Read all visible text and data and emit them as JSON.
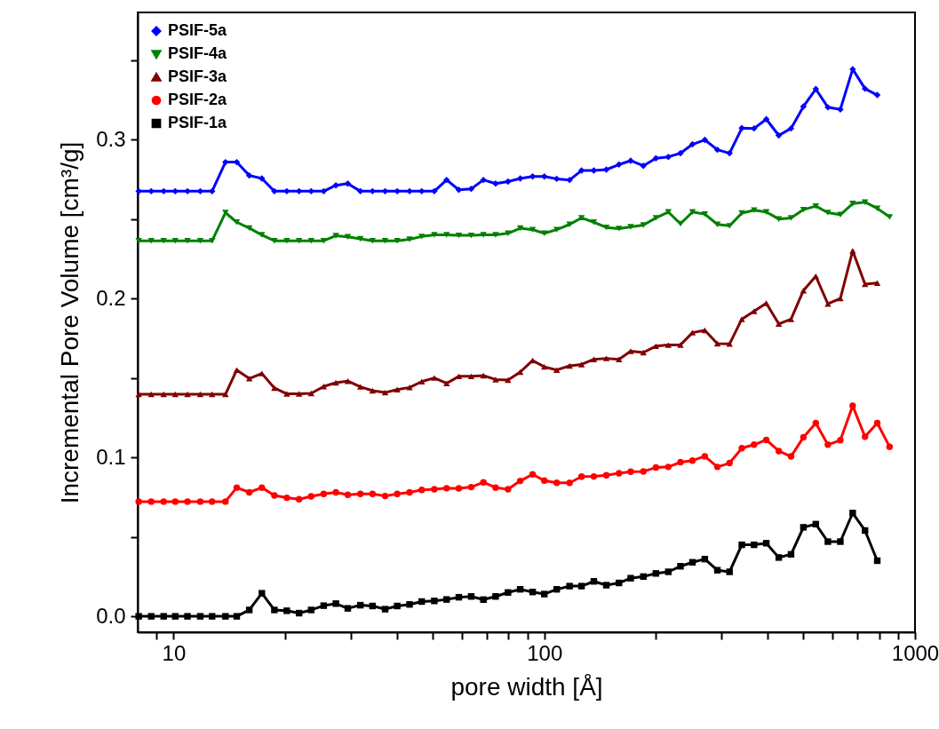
{
  "chart_data": {
    "type": "line",
    "xlabel": "pore width [Å]",
    "ylabel": "Incremental Pore Volume [cm³/g]",
    "log": "x",
    "grid": false,
    "legend": "top left",
    "line_style": "solid",
    "xlim": [
      8,
      1000
    ],
    "xticks": [
      {
        "value": 9,
        "label": null
      },
      {
        "value": 10,
        "label": "10"
      },
      {
        "value": 20,
        "label": null
      },
      {
        "value": 30,
        "label": null
      },
      {
        "value": 40,
        "label": null
      },
      {
        "value": 50,
        "label": null
      },
      {
        "value": 60,
        "label": null
      },
      {
        "value": 70,
        "label": null
      },
      {
        "value": 80,
        "label": null
      },
      {
        "value": 90,
        "label": null
      },
      {
        "value": 100,
        "label": "100"
      },
      {
        "value": 200,
        "label": null
      },
      {
        "value": 300,
        "label": null
      },
      {
        "value": 400,
        "label": null
      },
      {
        "value": 500,
        "label": null
      },
      {
        "value": 600,
        "label": null
      },
      {
        "value": 700,
        "label": null
      },
      {
        "value": 800,
        "label": null
      },
      {
        "value": 900,
        "label": null
      },
      {
        "value": 1000,
        "label": "1000"
      }
    ],
    "ylim": [
      -0.01,
      0.38
    ],
    "yticks": [
      {
        "value": 0,
        "label": "0.0"
      },
      {
        "value": 0.05,
        "label": null
      },
      {
        "value": 0.1,
        "label": "0.1"
      },
      {
        "value": 0.15,
        "label": null
      },
      {
        "value": 0.2,
        "label": "0.2"
      },
      {
        "value": 0.25,
        "label": null
      },
      {
        "value": 0.3,
        "label": "0.3"
      },
      {
        "value": 0.35,
        "label": null
      }
    ],
    "x": [
      8.05,
      8.7,
      9.4,
      10.1,
      10.9,
      11.8,
      12.7,
      13.8,
      14.8,
      16,
      17.3,
      18.7,
      20.2,
      21.8,
      23.5,
      25.4,
      27.4,
      29.5,
      31.9,
      34.4,
      37.2,
      40.1,
      43.3,
      46.7,
      50.5,
      54.5,
      58.8,
      63.5,
      68.5,
      73.9,
      79.8,
      86.1,
      93,
      100,
      108,
      117,
      126,
      136,
      147,
      159,
      171,
      185,
      200,
      216,
      233,
      251,
      271,
      293,
      316,
      341,
      368,
      397,
      429,
      463,
      500,
      540,
      582,
      629,
      679,
      733,
      791,
      854
    ],
    "series": [
      {
        "name": "PSIF-5a",
        "color": "#0000ff",
        "marker": "diamond",
        "values": [
          0.2675,
          0.2675,
          0.2675,
          0.2675,
          0.2675,
          0.2675,
          0.2675,
          0.2858,
          0.2858,
          0.2774,
          0.2755,
          0.2675,
          0.2675,
          0.2675,
          0.2675,
          0.2675,
          0.2712,
          0.2723,
          0.2675,
          0.2675,
          0.2675,
          0.2675,
          0.2675,
          0.2675,
          0.2675,
          0.2746,
          0.2684,
          0.269,
          0.2746,
          0.2723,
          0.2736,
          0.2755,
          0.2768,
          0.2768,
          0.2753,
          0.2746,
          0.2805,
          0.2805,
          0.2811,
          0.2843,
          0.2867,
          0.2835,
          0.2882,
          0.2891,
          0.2914,
          0.297,
          0.2998,
          0.2936,
          0.2914,
          0.3072,
          0.307,
          0.3128,
          0.3026,
          0.307,
          0.3208,
          0.3318,
          0.3203,
          0.319,
          0.3443,
          0.332,
          0.328,
          null
        ]
      },
      {
        "name": "PSIF-4a",
        "color": "#008000",
        "marker": "triangle-down",
        "values": [
          0.2363,
          0.2363,
          0.2363,
          0.2363,
          0.2363,
          0.2363,
          0.2363,
          0.254,
          0.248,
          0.2443,
          0.24,
          0.2363,
          0.2363,
          0.2363,
          0.2363,
          0.2363,
          0.2395,
          0.2388,
          0.2375,
          0.2363,
          0.2363,
          0.2363,
          0.2372,
          0.239,
          0.24,
          0.24,
          0.2397,
          0.2397,
          0.24,
          0.24,
          0.241,
          0.2442,
          0.2433,
          0.241,
          0.2433,
          0.2466,
          0.2507,
          0.248,
          0.2447,
          0.244,
          0.2451,
          0.2462,
          0.2507,
          0.2544,
          0.247,
          0.2544,
          0.2531,
          0.2466,
          0.2457,
          0.2537,
          0.2555,
          0.2544,
          0.25,
          0.2507,
          0.2559,
          0.2581,
          0.254,
          0.2527,
          0.2597,
          0.2606,
          0.2567,
          0.2513
        ]
      },
      {
        "name": "PSIF-3a",
        "color": "#800000",
        "marker": "triangle",
        "values": [
          0.1397,
          0.1397,
          0.1397,
          0.1397,
          0.1397,
          0.1397,
          0.1397,
          0.1397,
          0.155,
          0.1496,
          0.1528,
          0.1437,
          0.14,
          0.14,
          0.1403,
          0.1446,
          0.147,
          0.148,
          0.1444,
          0.142,
          0.1408,
          0.1427,
          0.144,
          0.1477,
          0.15,
          0.1466,
          0.151,
          0.151,
          0.1515,
          0.149,
          0.1487,
          0.1537,
          0.161,
          0.157,
          0.155,
          0.1576,
          0.1585,
          0.1617,
          0.1623,
          0.1617,
          0.1668,
          0.166,
          0.17,
          0.1707,
          0.1708,
          0.1785,
          0.18,
          0.1716,
          0.1714,
          0.187,
          0.192,
          0.197,
          0.184,
          0.187,
          0.205,
          0.214,
          0.1966,
          0.2,
          0.23,
          0.209,
          0.2097,
          null
        ]
      },
      {
        "name": "PSIF-2a",
        "color": "#ff0000",
        "marker": "circle",
        "values": [
          0.0722,
          0.0722,
          0.0722,
          0.0722,
          0.0722,
          0.0722,
          0.0722,
          0.0722,
          0.081,
          0.078,
          0.081,
          0.076,
          0.0746,
          0.0737,
          0.0755,
          0.077,
          0.078,
          0.0765,
          0.077,
          0.077,
          0.0757,
          0.077,
          0.078,
          0.0795,
          0.08,
          0.0806,
          0.0805,
          0.0813,
          0.0843,
          0.081,
          0.08,
          0.0852,
          0.0893,
          0.0854,
          0.084,
          0.084,
          0.0879,
          0.088,
          0.0888,
          0.09,
          0.091,
          0.0912,
          0.0936,
          0.094,
          0.097,
          0.098,
          0.1007,
          0.094,
          0.0964,
          0.1058,
          0.108,
          0.111,
          0.104,
          0.1006,
          0.1127,
          0.1216,
          0.108,
          0.1108,
          0.1325,
          0.113,
          0.1216,
          0.1067
        ]
      },
      {
        "name": "PSIF-1a",
        "color": "#000000",
        "marker": "square",
        "values": [
          0,
          0,
          0,
          0,
          0,
          0,
          0,
          0,
          0,
          0.004,
          0.0145,
          0.004,
          0.0035,
          0.002,
          0.004,
          0.0067,
          0.008,
          0.005,
          0.007,
          0.0065,
          0.0045,
          0.0065,
          0.0075,
          0.0093,
          0.0097,
          0.0106,
          0.012,
          0.0125,
          0.0105,
          0.0125,
          0.015,
          0.017,
          0.0153,
          0.014,
          0.017,
          0.019,
          0.019,
          0.022,
          0.0196,
          0.021,
          0.024,
          0.025,
          0.027,
          0.028,
          0.0315,
          0.034,
          0.036,
          0.029,
          0.028,
          0.045,
          0.045,
          0.046,
          0.037,
          0.039,
          0.056,
          0.058,
          0.047,
          0.047,
          0.065,
          0.054,
          0.035,
          null
        ]
      }
    ]
  }
}
